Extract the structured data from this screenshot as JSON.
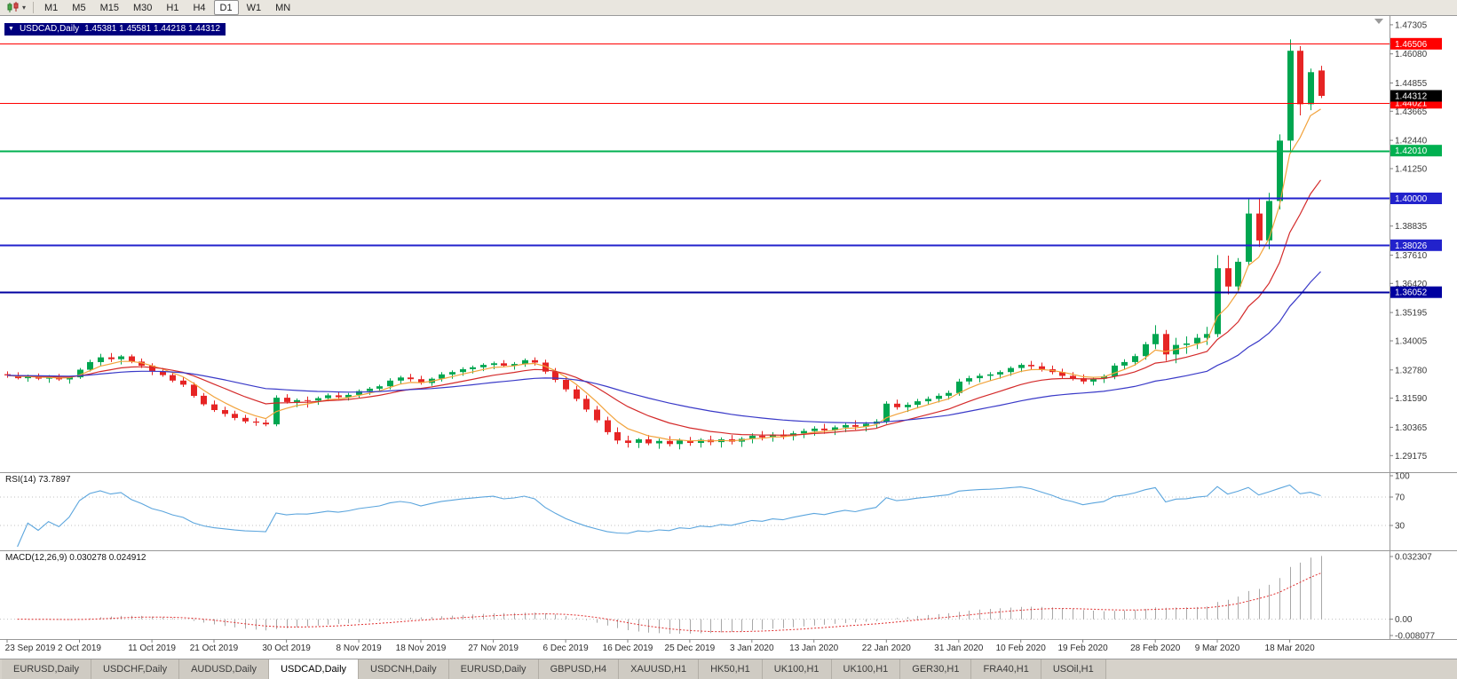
{
  "toolbar": {
    "timeframes": [
      "M1",
      "M5",
      "M15",
      "M30",
      "H1",
      "H4",
      "D1",
      "W1",
      "MN"
    ],
    "active_timeframe": "D1"
  },
  "chart": {
    "symbol": "USDCAD,Daily",
    "ohlc": "1.45381 1.45581 1.44218 1.44312",
    "current_price": "1.44312",
    "price_axis": [
      "1.47305",
      "1.46080",
      "1.44855",
      "1.43665",
      "1.42440",
      "1.41250",
      "1.40025",
      "1.38835",
      "1.37610",
      "1.36420",
      "1.35195",
      "1.34005",
      "1.32780",
      "1.31590",
      "1.30365",
      "1.29175"
    ],
    "levels": [
      {
        "value": "1.46506",
        "price": 1.46506,
        "color": "#ff0000",
        "width": 1
      },
      {
        "value": "1.44021",
        "price": 1.44021,
        "color": "#ff0000",
        "width": 1
      },
      {
        "value": "1.42010",
        "price": 1.4201,
        "color": "#00b050",
        "width": 2
      },
      {
        "value": "1.40000",
        "price": 1.4,
        "color": "#2222cc",
        "width": 2
      },
      {
        "value": "1.38026",
        "price": 1.38026,
        "color": "#2222cc",
        "width": 2
      },
      {
        "value": "1.36052",
        "price": 1.36052,
        "color": "#0000a0",
        "width": 2
      }
    ]
  },
  "rsi": {
    "label": "RSI(14) 73.7897",
    "period": 14,
    "value": 73.7897,
    "axis": [
      "100",
      "70",
      "30"
    ],
    "guides": [
      70,
      30
    ]
  },
  "macd": {
    "label": "MACD(12,26,9) 0.030278 0.024912",
    "value": 0.030278,
    "signal_value": 0.024912,
    "axis": [
      {
        "text": "0.032307",
        "value": 0.032307
      },
      {
        "text": "0.00",
        "value": 0
      },
      {
        "text": "-0.008077",
        "value": -0.008077
      }
    ],
    "max": 0.032307,
    "min": -0.008077
  },
  "date_axis": [
    {
      "label": "23 Sep 2019",
      "i": 0
    },
    {
      "label": "2 Oct 2019",
      "i": 7
    },
    {
      "label": "11 Oct 2019",
      "i": 14
    },
    {
      "label": "21 Oct 2019",
      "i": 20
    },
    {
      "label": "30 Oct 2019",
      "i": 27
    },
    {
      "label": "8 Nov 2019",
      "i": 34
    },
    {
      "label": "18 Nov 2019",
      "i": 40
    },
    {
      "label": "27 Nov 2019",
      "i": 47
    },
    {
      "label": "6 Dec 2019",
      "i": 54
    },
    {
      "label": "16 Dec 2019",
      "i": 60
    },
    {
      "label": "25 Dec 2019",
      "i": 66
    },
    {
      "label": "3 Jan 2020",
      "i": 72
    },
    {
      "label": "13 Jan 2020",
      "i": 78
    },
    {
      "label": "22 Jan 2020",
      "i": 85
    },
    {
      "label": "31 Jan 2020",
      "i": 92
    },
    {
      "label": "10 Feb 2020",
      "i": 98
    },
    {
      "label": "19 Feb 2020",
      "i": 104
    },
    {
      "label": "28 Feb 2020",
      "i": 111
    },
    {
      "label": "9 Mar 2020",
      "i": 117
    },
    {
      "label": "18 Mar 2020",
      "i": 124
    }
  ],
  "tabs": [
    {
      "label": "EURUSD,Daily",
      "active": false
    },
    {
      "label": "USDCHF,Daily",
      "active": false
    },
    {
      "label": "AUDUSD,Daily",
      "active": false
    },
    {
      "label": "USDCAD,Daily",
      "active": true
    },
    {
      "label": "USDCNH,Daily",
      "active": false
    },
    {
      "label": "EURUSD,Daily",
      "active": false
    },
    {
      "label": "GBPUSD,H4",
      "active": false
    },
    {
      "label": "XAUUSD,H1",
      "active": false
    },
    {
      "label": "HK50,H1",
      "active": false
    },
    {
      "label": "UK100,H1",
      "active": false
    },
    {
      "label": "UK100,H1",
      "active": false
    },
    {
      "label": "GER30,H1",
      "active": false
    },
    {
      "label": "FRA40,H1",
      "active": false
    },
    {
      "label": "USOil,H1",
      "active": false
    }
  ],
  "colors": {
    "up": "#00a650",
    "down": "#e62424",
    "rsi_line": "#5ba5dd",
    "macd_hist": "#a8a8a8",
    "macd_signal": "#e03030",
    "axis_text": "#3a3a3a",
    "current_price_bg": "#000000",
    "guide_gray": "#c0c0c0"
  },
  "chart_data": {
    "type": "candlestick",
    "symbol": "USDCAD",
    "timeframe": "Daily",
    "ohlc_last": {
      "open": 1.45381,
      "high": 1.45581,
      "low": 1.44218,
      "close": 1.44312
    },
    "moving_averages": [
      {
        "name": "fast-ma-line",
        "color": "#f2a33c",
        "period": 5
      },
      {
        "name": "mid-ma-line",
        "color": "#d42a2a",
        "period": 13
      },
      {
        "name": "slow-ma-line",
        "color": "#3a3ac8",
        "period": 34
      }
    ],
    "indicators": [
      {
        "name": "RSI",
        "period": 14,
        "last": 73.7897
      },
      {
        "name": "MACD",
        "fast": 12,
        "slow": 26,
        "signal": 9,
        "last": 0.030278,
        "signal_last": 0.024912
      }
    ],
    "candles": [
      [
        1.326,
        1.3272,
        1.3245,
        1.3255
      ],
      [
        1.3255,
        1.3268,
        1.3238,
        1.3243
      ],
      [
        1.3243,
        1.3258,
        1.3228,
        1.3249
      ],
      [
        1.3249,
        1.3263,
        1.3235,
        1.3241
      ],
      [
        1.3241,
        1.3256,
        1.3224,
        1.3246
      ],
      [
        1.3246,
        1.3261,
        1.3232,
        1.3238
      ],
      [
        1.3238,
        1.3252,
        1.322,
        1.3247
      ],
      [
        1.3247,
        1.3286,
        1.324,
        1.3279
      ],
      [
        1.3279,
        1.3321,
        1.3271,
        1.3311
      ],
      [
        1.3311,
        1.3346,
        1.3296,
        1.3331
      ],
      [
        1.3331,
        1.3349,
        1.3311,
        1.3323
      ],
      [
        1.3323,
        1.3341,
        1.3301,
        1.3335
      ],
      [
        1.3335,
        1.3343,
        1.3306,
        1.3313
      ],
      [
        1.3313,
        1.3326,
        1.3286,
        1.3296
      ],
      [
        1.3296,
        1.3306,
        1.3256,
        1.3271
      ],
      [
        1.3271,
        1.3286,
        1.3249,
        1.3256
      ],
      [
        1.3256,
        1.3269,
        1.3226,
        1.3233
      ],
      [
        1.3233,
        1.3249,
        1.3206,
        1.3216
      ],
      [
        1.3216,
        1.3226,
        1.3161,
        1.3169
      ],
      [
        1.3169,
        1.3181,
        1.3126,
        1.3133
      ],
      [
        1.3133,
        1.3149,
        1.3101,
        1.3109
      ],
      [
        1.3109,
        1.3123,
        1.3081,
        1.3093
      ],
      [
        1.3093,
        1.3106,
        1.3066,
        1.3076
      ],
      [
        1.3076,
        1.3089,
        1.3053,
        1.3061
      ],
      [
        1.3061,
        1.3076,
        1.3043,
        1.3056
      ],
      [
        1.3056,
        1.3069,
        1.3041,
        1.3049
      ],
      [
        1.3049,
        1.3171,
        1.3041,
        1.3161
      ],
      [
        1.3161,
        1.3176,
        1.3136,
        1.3143
      ],
      [
        1.3143,
        1.3158,
        1.3121,
        1.3151
      ],
      [
        1.3151,
        1.3166,
        1.3119,
        1.3149
      ],
      [
        1.3149,
        1.3166,
        1.3131,
        1.3159
      ],
      [
        1.3159,
        1.3179,
        1.3146,
        1.3171
      ],
      [
        1.3171,
        1.3186,
        1.3153,
        1.3163
      ],
      [
        1.3163,
        1.3181,
        1.3149,
        1.3173
      ],
      [
        1.3173,
        1.3196,
        1.3161,
        1.3189
      ],
      [
        1.3189,
        1.3206,
        1.3173,
        1.3199
      ],
      [
        1.3199,
        1.3216,
        1.3186,
        1.3209
      ],
      [
        1.3209,
        1.3243,
        1.3196,
        1.3233
      ],
      [
        1.3233,
        1.3253,
        1.3219,
        1.3246
      ],
      [
        1.3246,
        1.3261,
        1.3229,
        1.3239
      ],
      [
        1.3239,
        1.3253,
        1.3216,
        1.3223
      ],
      [
        1.3223,
        1.3246,
        1.3211,
        1.3241
      ],
      [
        1.3241,
        1.3269,
        1.3229,
        1.3259
      ],
      [
        1.3259,
        1.3276,
        1.3241,
        1.3269
      ],
      [
        1.3269,
        1.3289,
        1.3253,
        1.3281
      ],
      [
        1.3281,
        1.3296,
        1.3263,
        1.3289
      ],
      [
        1.3289,
        1.3306,
        1.3273,
        1.3299
      ],
      [
        1.3299,
        1.3313,
        1.3281,
        1.3306
      ],
      [
        1.3306,
        1.3319,
        1.3289,
        1.3296
      ],
      [
        1.3296,
        1.3311,
        1.3279,
        1.3303
      ],
      [
        1.3303,
        1.3326,
        1.3291,
        1.3319
      ],
      [
        1.3319,
        1.3331,
        1.3296,
        1.3309
      ],
      [
        1.3309,
        1.3321,
        1.3261,
        1.3271
      ],
      [
        1.3271,
        1.3286,
        1.3226,
        1.3236
      ],
      [
        1.3236,
        1.3251,
        1.3186,
        1.3196
      ],
      [
        1.3196,
        1.3211,
        1.3146,
        1.3156
      ],
      [
        1.3156,
        1.3171,
        1.3101,
        1.3111
      ],
      [
        1.3111,
        1.3126,
        1.3056,
        1.3066
      ],
      [
        1.3066,
        1.3081,
        1.3006,
        1.3016
      ],
      [
        1.3016,
        1.3036,
        1.2966,
        1.2981
      ],
      [
        1.2981,
        1.3001,
        1.2951,
        1.2971
      ],
      [
        1.2971,
        1.2991,
        1.2949,
        1.2986
      ],
      [
        1.2986,
        1.3004,
        1.2961,
        1.2969
      ],
      [
        1.2969,
        1.2989,
        1.2946,
        1.2979
      ],
      [
        1.2979,
        1.2999,
        1.2956,
        1.2966
      ],
      [
        1.2966,
        1.2989,
        1.2944,
        1.2981
      ],
      [
        1.2981,
        1.2996,
        1.2959,
        1.2971
      ],
      [
        1.2971,
        1.2991,
        1.2951,
        1.2984
      ],
      [
        1.2984,
        1.3001,
        1.2961,
        1.2974
      ],
      [
        1.2974,
        1.2994,
        1.2951,
        1.2986
      ],
      [
        1.2986,
        1.3004,
        1.2964,
        1.2976
      ],
      [
        1.2976,
        1.2996,
        1.2954,
        1.2988
      ],
      [
        1.2988,
        1.3011,
        1.2969,
        1.3001
      ],
      [
        1.3001,
        1.3021,
        1.2981,
        1.2994
      ],
      [
        1.2994,
        1.3016,
        1.2976,
        1.3006
      ],
      [
        1.3006,
        1.3026,
        1.2986,
        1.2999
      ],
      [
        1.2999,
        1.3021,
        1.2981,
        1.3011
      ],
      [
        1.3011,
        1.3031,
        1.2991,
        1.3021
      ],
      [
        1.3021,
        1.3041,
        1.3001,
        1.3031
      ],
      [
        1.3031,
        1.3051,
        1.3009,
        1.3024
      ],
      [
        1.3024,
        1.3044,
        1.3004,
        1.3036
      ],
      [
        1.3036,
        1.3056,
        1.3016,
        1.3046
      ],
      [
        1.3046,
        1.3066,
        1.3026,
        1.3039
      ],
      [
        1.3039,
        1.3059,
        1.3019,
        1.3051
      ],
      [
        1.3051,
        1.3071,
        1.3031,
        1.3061
      ],
      [
        1.3061,
        1.3146,
        1.3051,
        1.3136
      ],
      [
        1.3136,
        1.3153,
        1.3111,
        1.3121
      ],
      [
        1.3121,
        1.3141,
        1.3101,
        1.3131
      ],
      [
        1.3131,
        1.3156,
        1.3116,
        1.3146
      ],
      [
        1.3146,
        1.3166,
        1.3131,
        1.3156
      ],
      [
        1.3156,
        1.3179,
        1.3141,
        1.3169
      ],
      [
        1.3169,
        1.3191,
        1.3153,
        1.3181
      ],
      [
        1.3181,
        1.3241,
        1.3169,
        1.3229
      ],
      [
        1.3229,
        1.3253,
        1.3216,
        1.3243
      ],
      [
        1.3243,
        1.3263,
        1.3226,
        1.3253
      ],
      [
        1.3253,
        1.3269,
        1.3233,
        1.3259
      ],
      [
        1.3259,
        1.3276,
        1.3241,
        1.3269
      ],
      [
        1.3269,
        1.3293,
        1.3253,
        1.3286
      ],
      [
        1.3286,
        1.3306,
        1.3269,
        1.3299
      ],
      [
        1.3299,
        1.3316,
        1.3281,
        1.3293
      ],
      [
        1.3293,
        1.3309,
        1.3271,
        1.3281
      ],
      [
        1.3281,
        1.3296,
        1.3259,
        1.3269
      ],
      [
        1.3269,
        1.3283,
        1.3243,
        1.3253
      ],
      [
        1.3253,
        1.3269,
        1.3233,
        1.3243
      ],
      [
        1.3243,
        1.3259,
        1.3219,
        1.3229
      ],
      [
        1.3229,
        1.3249,
        1.3213,
        1.3241
      ],
      [
        1.3241,
        1.3259,
        1.3223,
        1.3251
      ],
      [
        1.3251,
        1.3306,
        1.3239,
        1.3296
      ],
      [
        1.3296,
        1.3323,
        1.3279,
        1.3311
      ],
      [
        1.3311,
        1.3346,
        1.3296,
        1.3336
      ],
      [
        1.3336,
        1.3396,
        1.3321,
        1.3386
      ],
      [
        1.3386,
        1.3466,
        1.3366,
        1.3429
      ],
      [
        1.3429,
        1.3446,
        1.3316,
        1.3343
      ],
      [
        1.3343,
        1.3413,
        1.3306,
        1.3383
      ],
      [
        1.3383,
        1.3419,
        1.3346,
        1.3389
      ],
      [
        1.3389,
        1.3429,
        1.3366,
        1.3413
      ],
      [
        1.3413,
        1.3459,
        1.3383,
        1.3429
      ],
      [
        1.3429,
        1.3761,
        1.3416,
        1.3706
      ],
      [
        1.3706,
        1.3759,
        1.3596,
        1.3629
      ],
      [
        1.3629,
        1.3749,
        1.3606,
        1.3733
      ],
      [
        1.3733,
        1.3999,
        1.3716,
        1.3936
      ],
      [
        1.3936,
        1.3996,
        1.3796,
        1.3823
      ],
      [
        1.3823,
        1.4023,
        1.3786,
        1.3989
      ],
      [
        1.3989,
        1.4269,
        1.3953,
        1.4243
      ],
      [
        1.4243,
        1.4669,
        1.4196,
        1.4621
      ],
      [
        1.4621,
        1.4641,
        1.4349,
        1.4396
      ],
      [
        1.4396,
        1.4546,
        1.4371,
        1.4531
      ],
      [
        1.45381,
        1.45581,
        1.44218,
        1.44312
      ]
    ]
  }
}
